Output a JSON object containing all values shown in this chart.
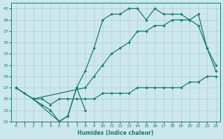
{
  "xlabel": "Humidex (Indice chaleur)",
  "bg_color": "#cce8ec",
  "grid_color": "#aacdd4",
  "line_color": "#1a7a6e",
  "xlim": [
    -0.5,
    23.5
  ],
  "ylim": [
    21,
    42
  ],
  "yticks": [
    21,
    23,
    25,
    27,
    29,
    31,
    33,
    35,
    37,
    39,
    41
  ],
  "xticks": [
    0,
    1,
    2,
    3,
    4,
    5,
    6,
    7,
    8,
    9,
    10,
    11,
    12,
    13,
    14,
    15,
    16,
    17,
    18,
    19,
    20,
    21,
    22,
    23
  ],
  "line_dip_x": [
    0,
    1,
    2,
    3,
    4,
    5,
    6,
    7,
    8
  ],
  "line_dip_y": [
    27,
    26,
    25,
    24,
    23,
    21,
    22,
    27,
    23
  ],
  "line_flat_x": [
    2,
    3,
    4,
    5,
    6,
    7,
    8,
    9,
    10,
    11,
    12,
    13,
    14,
    15,
    16,
    17,
    18,
    19,
    20,
    21,
    22,
    23
  ],
  "line_flat_y": [
    25,
    25,
    24,
    25,
    25,
    25,
    25,
    25,
    26,
    26,
    26,
    26,
    27,
    27,
    27,
    27,
    27,
    27,
    28,
    28,
    29,
    29
  ],
  "line_mid_x": [
    0,
    2,
    8,
    9,
    10,
    11,
    12,
    13,
    14,
    15,
    16,
    17,
    18,
    19,
    20,
    21,
    22,
    23
  ],
  "line_mid_y": [
    27,
    25,
    27,
    29,
    31,
    33,
    34,
    35,
    37,
    37,
    38,
    38,
    39,
    39,
    39,
    38,
    34,
    30
  ],
  "line_top_x": [
    0,
    2,
    5,
    6,
    7,
    8,
    9,
    10,
    11,
    12,
    13,
    14,
    15,
    16,
    17,
    18,
    19,
    20,
    21,
    22,
    23
  ],
  "line_top_y": [
    27,
    25,
    21,
    22,
    27,
    30,
    34,
    39,
    40,
    40,
    41,
    41,
    39,
    41,
    40,
    40,
    40,
    39,
    40,
    34,
    31
  ]
}
